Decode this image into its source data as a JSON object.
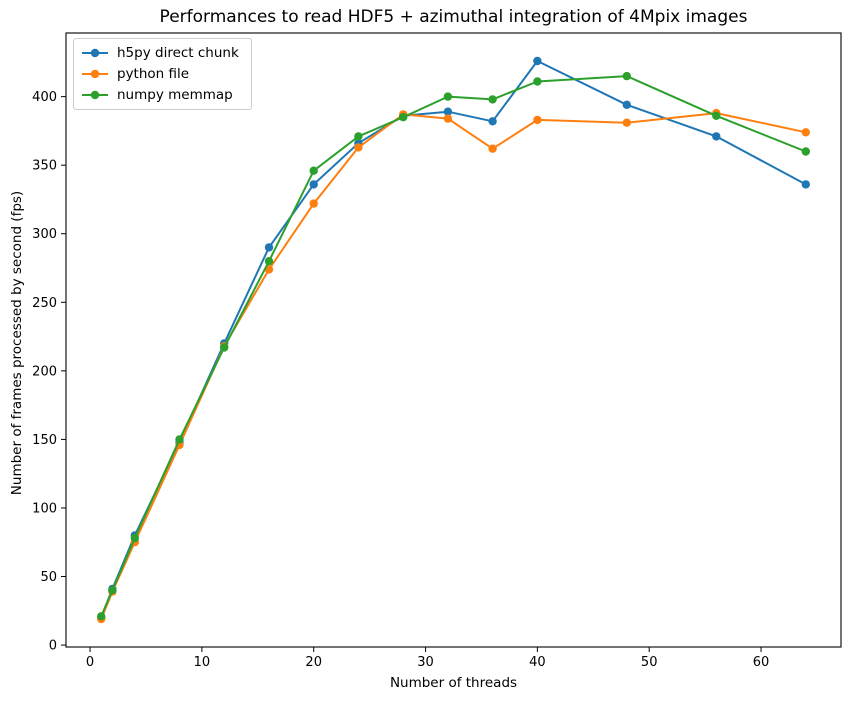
{
  "title": "Performances to read HDF5 + azimuthal integration of 4Mpix images",
  "chart_data": {
    "type": "line",
    "title": "Performances to read HDF5 + azimuthal integration of 4Mpix images",
    "xlabel": "Number of threads",
    "ylabel": "Number of frames processed by second (fps)",
    "x": [
      1,
      2,
      4,
      8,
      12,
      16,
      20,
      24,
      28,
      32,
      36,
      40,
      48,
      56,
      64
    ],
    "series": [
      {
        "name": "h5py direct chunk",
        "color": "#1f77b4",
        "values": [
          20,
          41,
          80,
          148,
          220,
          290,
          336,
          366,
          386,
          389,
          382,
          426,
          394,
          371,
          336
        ]
      },
      {
        "name": "python file",
        "color": "#ff7f0e",
        "values": [
          19,
          39,
          75,
          146,
          218,
          274,
          322,
          363,
          387,
          384,
          362,
          383,
          381,
          388,
          374
        ]
      },
      {
        "name": "numpy memmap",
        "color": "#2ca02c",
        "values": [
          21,
          40,
          78,
          150,
          217,
          280,
          346,
          371,
          385,
          400,
          398,
          411,
          415,
          386,
          360
        ]
      }
    ],
    "xticks": [
      0,
      10,
      20,
      30,
      40,
      50,
      60
    ],
    "yticks": [
      0,
      50,
      100,
      150,
      200,
      250,
      300,
      350,
      400
    ],
    "xlim": [
      -2.15,
      67.15
    ],
    "ylim": [
      -1.4,
      446.4
    ],
    "grid": false,
    "marker": "o",
    "legend_position": "upper left",
    "spine_color": "#000000",
    "text_color": "#000000"
  }
}
